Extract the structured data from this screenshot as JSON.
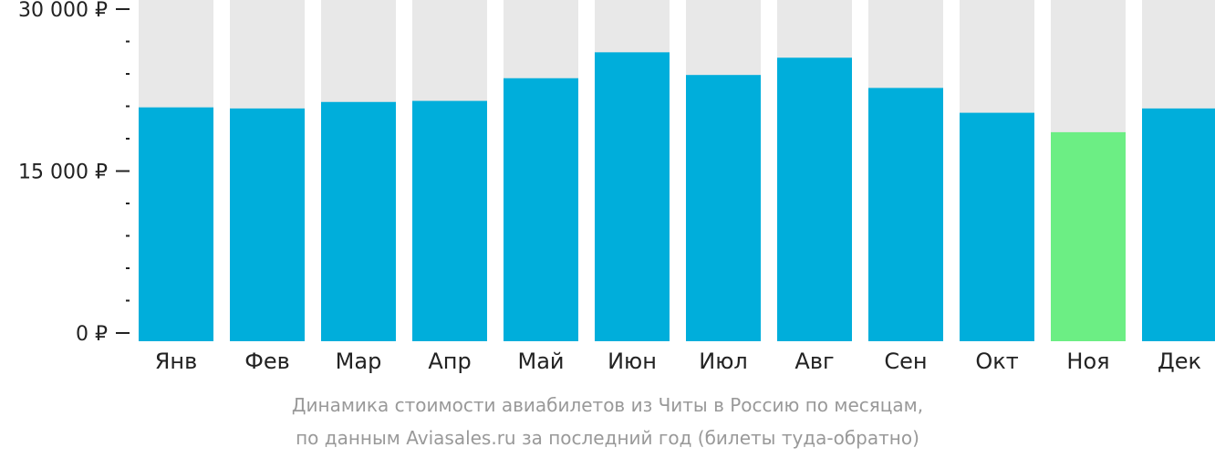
{
  "chart_data": {
    "type": "bar",
    "categories": [
      "Янв",
      "Фев",
      "Мар",
      "Апр",
      "Май",
      "Июн",
      "Июл",
      "Авг",
      "Сен",
      "Окт",
      "Ноя",
      "Дек"
    ],
    "values": [
      20900,
      20800,
      21400,
      21500,
      23600,
      26000,
      23900,
      25500,
      22700,
      20400,
      18600,
      20800
    ],
    "highlight_index": 10,
    "ylim": [
      0,
      30000
    ],
    "yticks": [
      {
        "value": 0,
        "label": "0 ₽"
      },
      {
        "value": 15000,
        "label": "15 000 ₽"
      },
      {
        "value": 30000,
        "label": "30 000 ₽"
      }
    ],
    "minor_tick_step": 3000,
    "colors": {
      "bar": "#00AEDB",
      "highlight": "#6CEE84",
      "background_bar": "#E8E8E8",
      "axis": "#222222"
    },
    "caption": [
      "Динамика стоимости авиабилетов из Читы в Россию по месяцам,",
      "по данным Aviasales.ru за последний год (билеты туда-обратно)"
    ]
  }
}
